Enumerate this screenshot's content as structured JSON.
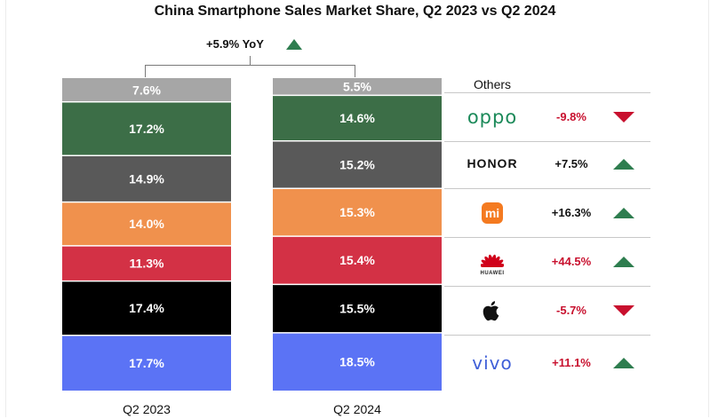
{
  "title": "China Smartphone Sales Market Share, Q2 2023 vs Q2 2024",
  "yoy_label": "+5.9% YoY",
  "legend_header": "Others",
  "chart_data": {
    "type": "bar",
    "stacked": true,
    "normalized": true,
    "title": "China Smartphone Sales Market Share, Q2 2023 vs Q2 2024",
    "xlabel": "",
    "ylabel": "",
    "categories": [
      "Q2 2023",
      "Q2 2024"
    ],
    "series": [
      {
        "name": "Others",
        "color": "#a6a6a6",
        "values": [
          7.6,
          5.5
        ],
        "labels": [
          "7.6%",
          "5.5%"
        ]
      },
      {
        "name": "OPPO",
        "color": "#3c6e47",
        "values": [
          17.2,
          14.6
        ],
        "labels": [
          "17.2%",
          "14.6%"
        ]
      },
      {
        "name": "HONOR",
        "color": "#595959",
        "values": [
          14.9,
          15.2
        ],
        "labels": [
          "14.9%",
          "15.2%"
        ]
      },
      {
        "name": "Xiaomi",
        "color": "#f0914d",
        "values": [
          14.0,
          15.3
        ],
        "labels": [
          "14.0%",
          "15.3%"
        ]
      },
      {
        "name": "HUAWEI",
        "color": "#d33145",
        "values": [
          11.3,
          15.4
        ],
        "labels": [
          "11.3%",
          "15.4%"
        ]
      },
      {
        "name": "Apple",
        "color": "#000000",
        "values": [
          17.4,
          15.5
        ],
        "labels": [
          "17.4%",
          "15.5%"
        ]
      },
      {
        "name": "vivo",
        "color": "#5b73f5",
        "values": [
          17.7,
          18.5
        ],
        "labels": [
          "17.7%",
          "18.5%"
        ]
      }
    ]
  },
  "legend_rows": [
    {
      "brand": "OPPO",
      "logo_text": "oppo",
      "icon": "oppo-logo",
      "change": "-9.8%",
      "direction": "down"
    },
    {
      "brand": "HONOR",
      "logo_text": "HONOR",
      "icon": "honor-logo",
      "change": "+7.5%",
      "direction": "up"
    },
    {
      "brand": "Xiaomi",
      "logo_text": "mi",
      "icon": "xiaomi-logo",
      "change": "+16.3%",
      "direction": "up"
    },
    {
      "brand": "HUAWEI",
      "logo_text": "HUAWEI",
      "icon": "huawei-logo",
      "change": "+44.5%",
      "direction": "up"
    },
    {
      "brand": "Apple",
      "logo_text": "",
      "icon": "apple-logo",
      "change": "-5.7%",
      "direction": "down"
    },
    {
      "brand": "vivo",
      "logo_text": "vivo",
      "icon": "vivo-logo",
      "change": "+11.1%",
      "direction": "up"
    }
  ],
  "colors": {
    "up": "#2e7d4f",
    "down": "#c8102e",
    "change_red": "#c8102e",
    "change_black": "#111111"
  }
}
